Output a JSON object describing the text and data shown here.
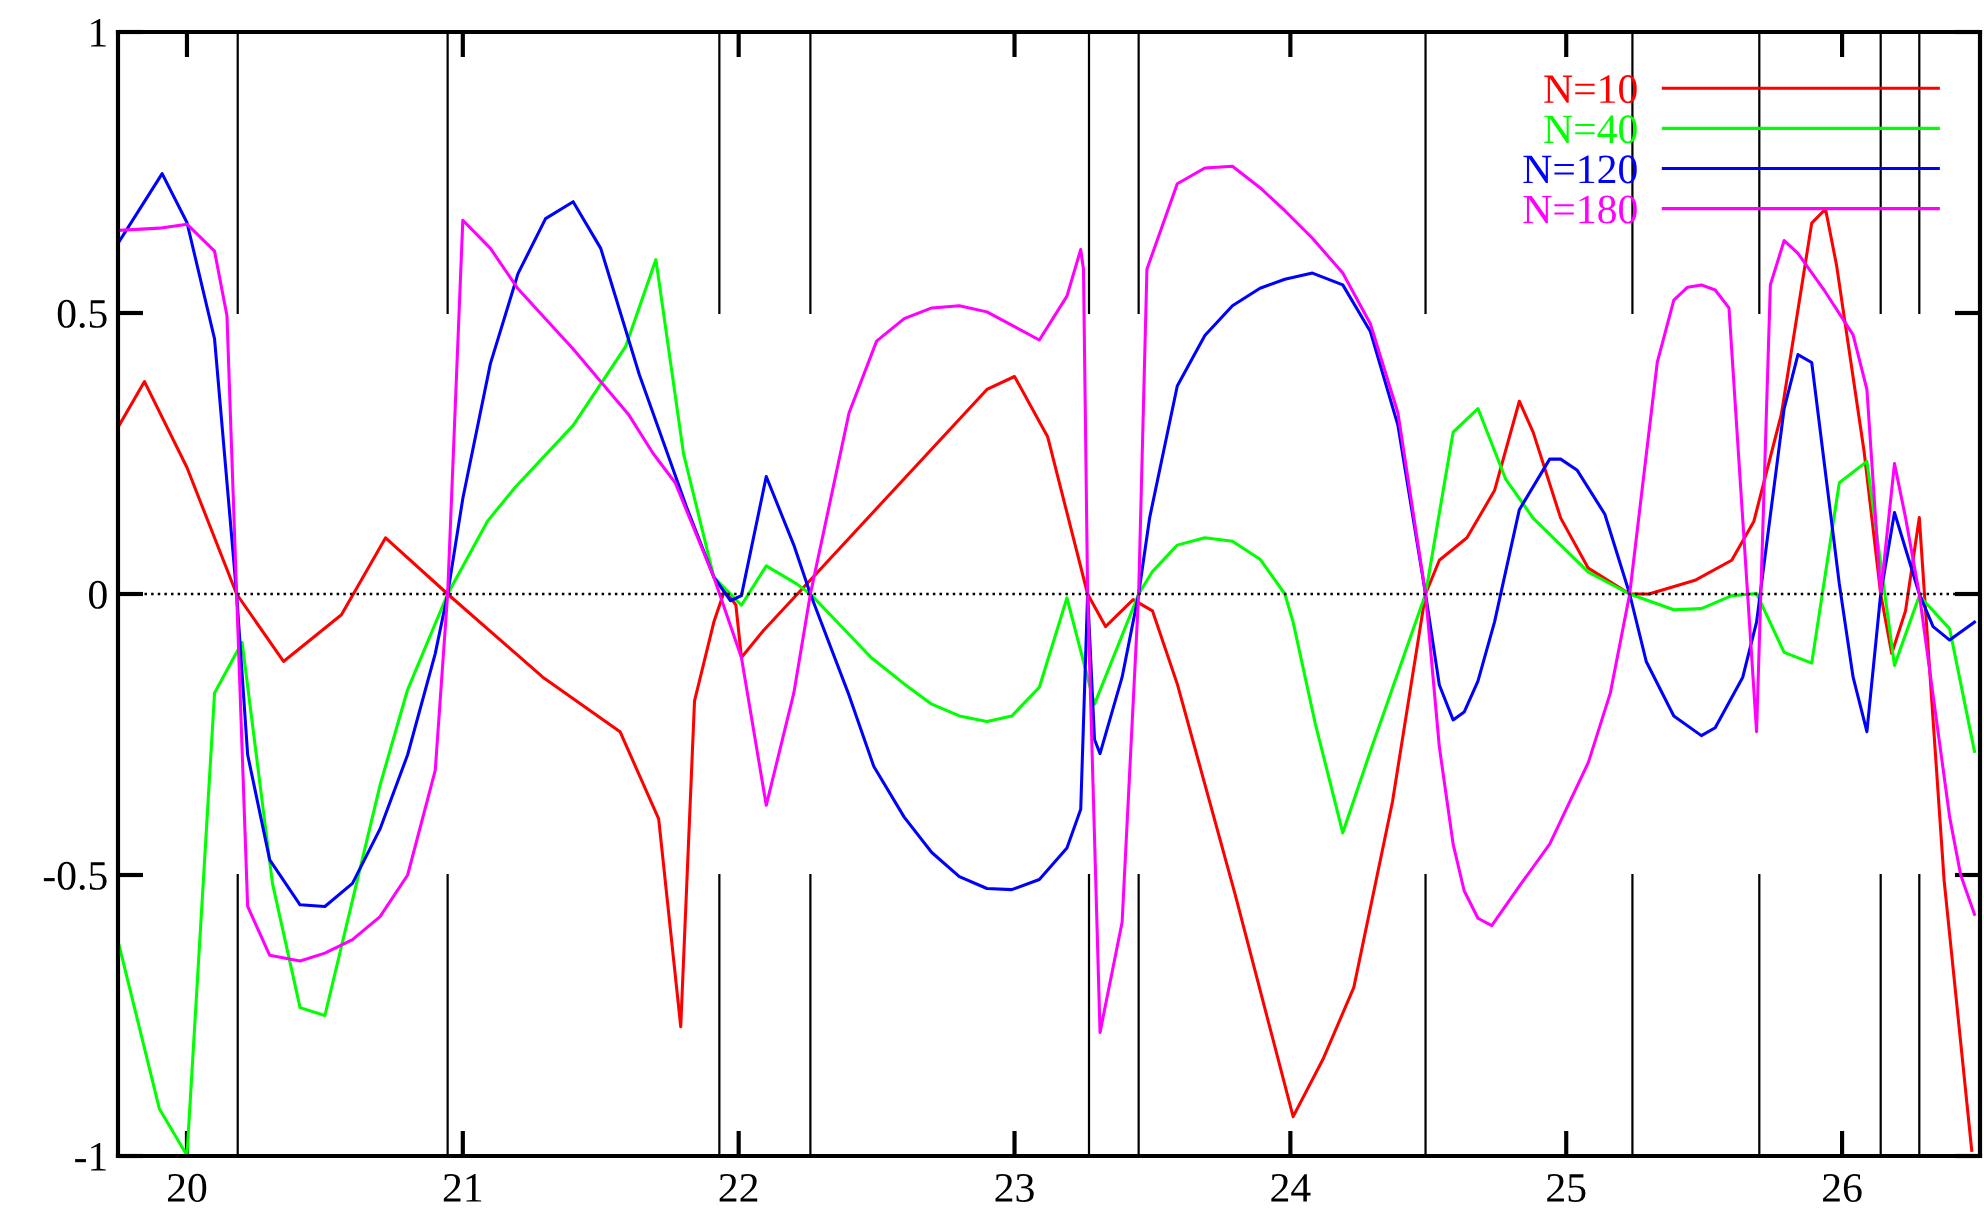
{
  "chart_data": {
    "type": "line",
    "xlim": [
      19.75,
      26.5
    ],
    "ylim": [
      -1,
      1
    ],
    "xticks": [
      20,
      21,
      22,
      23,
      24,
      25,
      26
    ],
    "yticks": [
      -1,
      -0.5,
      0,
      0.5,
      1
    ],
    "grid": false,
    "legend": "top right",
    "marker": "none",
    "line_style": "solid",
    "series": [
      {
        "name": "N=10",
        "color": "#ff0000",
        "x": [
          19.754,
          19.846,
          20.0,
          20.18,
          20.35,
          20.56,
          20.72,
          20.945,
          21.29,
          21.57,
          21.71,
          21.79,
          21.84,
          21.91,
          21.95,
          21.99,
          22.01,
          22.09,
          22.26,
          22.9,
          23.0,
          23.12,
          23.265,
          23.33,
          23.43,
          23.5,
          23.59,
          23.8,
          24.01,
          24.12,
          24.23,
          24.37,
          24.49,
          24.54,
          24.64,
          24.74,
          24.83,
          24.88,
          24.98,
          25.08,
          25.23,
          25.3,
          25.47,
          25.6,
          25.68,
          25.78,
          25.89,
          25.94,
          25.98,
          26.08,
          26.14,
          26.18,
          26.23,
          26.28,
          26.3,
          26.37,
          26.47
        ],
        "values": [
          0.3,
          0.378,
          0.225,
          0,
          -0.12,
          -0.037,
          0.1,
          0,
          -0.148,
          -0.245,
          -0.4,
          -0.77,
          -0.19,
          -0.05,
          0.008,
          -0.02,
          -0.113,
          -0.065,
          0.025,
          0.364,
          0.387,
          0.28,
          0,
          -0.058,
          -0.01,
          -0.03,
          -0.16,
          -0.535,
          -0.93,
          -0.826,
          -0.7,
          -0.37,
          0,
          0.06,
          0.1,
          0.184,
          0.343,
          0.288,
          0.135,
          0.046,
          0,
          0,
          0.025,
          0.06,
          0.129,
          0.32,
          0.66,
          0.685,
          0.585,
          0.253,
          0,
          -0.106,
          -0.03,
          0.136,
          -0.01,
          -0.51,
          -0.99
        ]
      },
      {
        "name": "N=40",
        "color": "#00ff00",
        "x": [
          19.754,
          19.9,
          20.0,
          20.1,
          20.2,
          20.31,
          20.41,
          20.5,
          20.7,
          20.8,
          20.945,
          21.09,
          21.19,
          21.4,
          21.59,
          21.7,
          21.8,
          21.91,
          22.01,
          22.1,
          22.21,
          22.26,
          22.48,
          22.6,
          22.7,
          22.8,
          22.9,
          22.99,
          23.09,
          23.19,
          23.29,
          23.45,
          23.5,
          23.59,
          23.69,
          23.79,
          23.89,
          23.98,
          24.01,
          24.09,
          24.19,
          24.29,
          24.49,
          24.59,
          24.68,
          24.78,
          24.88,
          25.08,
          25.23,
          25.39,
          25.49,
          25.6,
          25.69,
          25.79,
          25.89,
          25.99,
          26.09,
          26.19,
          26.28,
          26.39,
          26.48
        ],
        "values": [
          -0.625,
          -0.916,
          -0.999,
          -0.176,
          -0.086,
          -0.515,
          -0.736,
          -0.75,
          -0.34,
          -0.17,
          0,
          0.13,
          0.19,
          0.3,
          0.44,
          0.595,
          0.25,
          0.03,
          -0.02,
          0.05,
          0.018,
          0,
          -0.113,
          -0.16,
          -0.196,
          -0.217,
          -0.227,
          -0.217,
          -0.166,
          -0.007,
          -0.196,
          0,
          0.04,
          0.087,
          0.1,
          0.094,
          0.062,
          0,
          -0.05,
          -0.23,
          -0.425,
          -0.28,
          0,
          0.288,
          0.33,
          0.205,
          0.135,
          0.039,
          0,
          -0.028,
          -0.026,
          -0.003,
          0.001,
          -0.104,
          -0.123,
          0.198,
          0.236,
          -0.127,
          -0.003,
          -0.062,
          -0.28
        ]
      },
      {
        "name": "N=120",
        "color": "#0000ff",
        "x": [
          19.754,
          19.91,
          20.0,
          20.1,
          20.18,
          20.22,
          20.3,
          20.41,
          20.5,
          20.6,
          20.7,
          20.8,
          20.9,
          20.945,
          21.0,
          21.1,
          21.2,
          21.3,
          21.4,
          21.5,
          21.64,
          21.81,
          21.91,
          21.97,
          22.01,
          22.1,
          22.2,
          22.26,
          22.4,
          22.49,
          22.6,
          22.7,
          22.8,
          22.9,
          22.99,
          23.09,
          23.19,
          23.24,
          23.265,
          23.29,
          23.31,
          23.39,
          23.45,
          23.49,
          23.59,
          23.69,
          23.79,
          23.89,
          23.98,
          24.08,
          24.19,
          24.29,
          24.39,
          24.49,
          24.54,
          24.59,
          24.63,
          24.68,
          24.74,
          24.83,
          24.94,
          24.98,
          25.04,
          25.14,
          25.23,
          25.29,
          25.39,
          25.49,
          25.54,
          25.64,
          25.69,
          25.79,
          25.84,
          25.89,
          25.99,
          26.04,
          26.09,
          26.14,
          26.19,
          26.28,
          26.33,
          26.39,
          26.48
        ],
        "values": [
          0.627,
          0.748,
          0.661,
          0.454,
          0,
          -0.286,
          -0.473,
          -0.553,
          -0.556,
          -0.515,
          -0.418,
          -0.286,
          -0.106,
          0,
          0.17,
          0.41,
          0.57,
          0.668,
          0.698,
          0.615,
          0.39,
          0.156,
          0.03,
          -0.012,
          -0.003,
          0.209,
          0.087,
          0,
          -0.18,
          -0.307,
          -0.397,
          -0.46,
          -0.503,
          -0.524,
          -0.526,
          -0.508,
          -0.452,
          -0.383,
          0,
          -0.259,
          -0.284,
          -0.148,
          0,
          0.136,
          0.37,
          0.46,
          0.513,
          0.544,
          0.56,
          0.571,
          0.55,
          0.467,
          0.3,
          0,
          -0.162,
          -0.224,
          -0.21,
          -0.155,
          -0.05,
          0.15,
          0.24,
          0.24,
          0.22,
          0.142,
          0,
          -0.12,
          -0.217,
          -0.252,
          -0.238,
          -0.148,
          -0.05,
          0.33,
          0.426,
          0.412,
          0.018,
          -0.148,
          -0.245,
          0,
          0.145,
          0,
          -0.058,
          -0.082,
          -0.05
        ]
      },
      {
        "name": "N=180",
        "color": "#ff00ff",
        "x": [
          19.754,
          19.9,
          20.0,
          20.1,
          20.145,
          20.18,
          20.22,
          20.3,
          20.41,
          20.5,
          20.6,
          20.7,
          20.8,
          20.9,
          20.945,
          21.0,
          21.1,
          21.2,
          21.4,
          21.6,
          21.69,
          21.77,
          21.91,
          22.01,
          22.1,
          22.2,
          22.26,
          22.4,
          22.5,
          22.6,
          22.7,
          22.8,
          22.9,
          23.09,
          23.19,
          23.24,
          23.25,
          23.265,
          23.31,
          23.39,
          23.45,
          23.48,
          23.59,
          23.69,
          23.79,
          23.89,
          23.98,
          24.08,
          24.19,
          24.29,
          24.39,
          24.49,
          24.54,
          24.59,
          24.63,
          24.68,
          24.73,
          24.83,
          24.94,
          25.08,
          25.16,
          25.23,
          25.33,
          25.39,
          25.44,
          25.49,
          25.54,
          25.59,
          25.69,
          25.74,
          25.79,
          25.84,
          25.94,
          26.04,
          26.09,
          26.14,
          26.19,
          26.23,
          26.28,
          26.39,
          26.43,
          26.48
        ],
        "values": [
          0.647,
          0.651,
          0.658,
          0.61,
          0.495,
          0,
          -0.556,
          -0.643,
          -0.653,
          -0.639,
          -0.615,
          -0.574,
          -0.5,
          -0.314,
          0,
          0.665,
          0.615,
          0.543,
          0.436,
          0.32,
          0.25,
          0.198,
          0.03,
          -0.113,
          -0.376,
          -0.176,
          0,
          0.322,
          0.45,
          0.49,
          0.509,
          0.513,
          0.502,
          0.452,
          0.53,
          0.613,
          0.578,
          0,
          -0.78,
          -0.584,
          0,
          0.578,
          0.73,
          0.758,
          0.761,
          0.723,
          0.682,
          0.633,
          0.571,
          0.481,
          0.322,
          0,
          -0.272,
          -0.445,
          -0.528,
          -0.577,
          -0.59,
          -0.52,
          -0.445,
          -0.3,
          -0.176,
          0,
          0.412,
          0.523,
          0.546,
          0.55,
          0.541,
          0.509,
          -0.245,
          0.55,
          0.629,
          0.606,
          0.537,
          0.461,
          0.364,
          0,
          0.232,
          0.136,
          0,
          -0.397,
          -0.5,
          -0.57
        ]
      }
    ],
    "ref_lines": [
      {
        "axis": "y",
        "value": 0,
        "color": "#000000",
        "line_style": "dotted"
      },
      {
        "axis": "x",
        "value": 20.184,
        "color": "#000000"
      },
      {
        "axis": "x",
        "value": 20.945,
        "color": "#000000"
      },
      {
        "axis": "x",
        "value": 21.93,
        "color": "#000000"
      },
      {
        "axis": "x",
        "value": 22.26,
        "color": "#000000"
      },
      {
        "axis": "x",
        "value": 23.27,
        "color": "#000000"
      },
      {
        "axis": "x",
        "value": 23.45,
        "color": "#000000"
      },
      {
        "axis": "x",
        "value": 24.49,
        "color": "#000000"
      },
      {
        "axis": "x",
        "value": 25.24,
        "color": "#000000"
      },
      {
        "axis": "x",
        "value": 25.7,
        "color": "#000000"
      },
      {
        "axis": "x",
        "value": 26.14,
        "color": "#000000"
      },
      {
        "axis": "x",
        "value": 26.28,
        "color": "#000000"
      }
    ]
  }
}
